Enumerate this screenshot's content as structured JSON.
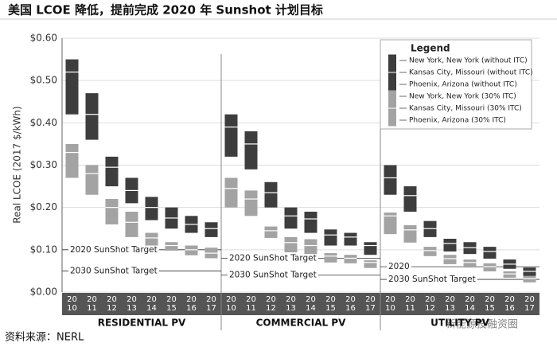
{
  "header": {
    "title": "美国 LCOE 降低，提前完成 2020 年 Sunshot 计划目标"
  },
  "chart_data": {
    "type": "range-bar",
    "y_label": "Real LCOE (2017 $/kWh)",
    "legend_title": "Legend",
    "legend": "upper right",
    "grid": true,
    "groups": [
      "RESIDENTIAL PV",
      "COMMERCIAL PV",
      "UTILITY PV"
    ],
    "categories": [
      "20 10",
      "20 11",
      "20 12",
      "20 13",
      "20 14",
      "20 15",
      "20 16",
      "20 17",
      "20 10",
      "20 11",
      "20 12",
      "20 13",
      "20 14",
      "20 15",
      "20 16",
      "20 17",
      "20 10",
      "20 11",
      "20 12",
      "20 13",
      "20 14",
      "20 15",
      "20 16",
      "20 17"
    ],
    "ylim": [
      0,
      0.6
    ],
    "yticks": [
      {
        "value": 0,
        "label": "$0.00"
      },
      {
        "value": 0.1,
        "label": "$0.10"
      },
      {
        "value": 0.2,
        "label": "$0.20"
      },
      {
        "value": 0.3,
        "label": "$0.30"
      },
      {
        "value": 0.4,
        "label": "$0.40"
      },
      {
        "value": 0.5,
        "label": "$0.50"
      },
      {
        "value": 0.6,
        "label": "$0.60"
      }
    ],
    "series": [
      {
        "name": "New York, New York (without ITC)",
        "color": "#3d3d3d",
        "values": [
          0.55,
          0.47,
          0.32,
          0.27,
          0.225,
          0.2,
          0.18,
          0.165,
          0.42,
          0.38,
          0.26,
          0.2,
          0.19,
          0.148,
          0.14,
          0.118,
          0.3,
          0.25,
          0.168,
          0.126,
          0.118,
          0.107,
          0.077,
          0.058
        ]
      },
      {
        "name": "Kansas City, Missouri (without ITC)",
        "color": "#3d3d3d",
        "values": [
          0.52,
          0.42,
          0.295,
          0.24,
          0.2,
          0.175,
          0.16,
          0.15,
          0.39,
          0.35,
          0.235,
          0.18,
          0.173,
          0.135,
          0.13,
          0.11,
          0.27,
          0.228,
          0.15,
          0.115,
          0.105,
          0.096,
          0.066,
          0.049
        ]
      },
      {
        "name": "Phoenix, Arizona (without ITC)",
        "color": "#3d3d3d",
        "values": [
          0.42,
          0.36,
          0.25,
          0.21,
          0.17,
          0.15,
          0.14,
          0.13,
          0.32,
          0.29,
          0.2,
          0.15,
          0.14,
          0.11,
          0.11,
          0.088,
          0.23,
          0.19,
          0.13,
          0.096,
          0.09,
          0.079,
          0.055,
          0.038
        ]
      },
      {
        "name": "New York, New York (30% ITC)",
        "color": "#a3a3a3",
        "values": [
          0.35,
          0.3,
          0.22,
          0.19,
          0.14,
          0.118,
          0.11,
          0.105,
          0.27,
          0.24,
          0.155,
          0.13,
          0.125,
          0.092,
          0.088,
          0.075,
          0.188,
          0.158,
          0.107,
          0.088,
          0.077,
          0.068,
          0.049,
          0.038
        ]
      },
      {
        "name": "Kansas City, Missouri (30% ITC)",
        "color": "#a3a3a3",
        "values": [
          0.33,
          0.28,
          0.2,
          0.165,
          0.128,
          0.11,
          0.1,
          0.092,
          0.245,
          0.22,
          0.145,
          0.117,
          0.11,
          0.085,
          0.08,
          0.07,
          0.18,
          0.147,
          0.098,
          0.079,
          0.07,
          0.06,
          0.043,
          0.032
        ]
      },
      {
        "name": "Phoenix, Arizona (30% ITC)",
        "color": "#a3a3a3",
        "values": [
          0.27,
          0.23,
          0.16,
          0.13,
          0.11,
          0.098,
          0.087,
          0.08,
          0.2,
          0.18,
          0.128,
          0.094,
          0.09,
          0.07,
          0.068,
          0.057,
          0.137,
          0.117,
          0.085,
          0.066,
          0.058,
          0.049,
          0.034,
          0.023
        ]
      }
    ],
    "targets": [
      {
        "group": 0,
        "label": "2020 SunShot Target",
        "value": 0.1
      },
      {
        "group": 0,
        "label": "2030 SunShot Target",
        "value": 0.05
      },
      {
        "group": 1,
        "label": "2020 SunShot Target",
        "value": 0.08
      },
      {
        "group": 1,
        "label": "2030 SunShot Target",
        "value": 0.04
      },
      {
        "group": 2,
        "label": "2020",
        "value": 0.06
      },
      {
        "group": 2,
        "label": "2030 SunShot Target",
        "value": 0.03
      }
    ]
  },
  "footer": {
    "source": "资料来源：NERL",
    "watermark": "新能源投融资圈"
  }
}
